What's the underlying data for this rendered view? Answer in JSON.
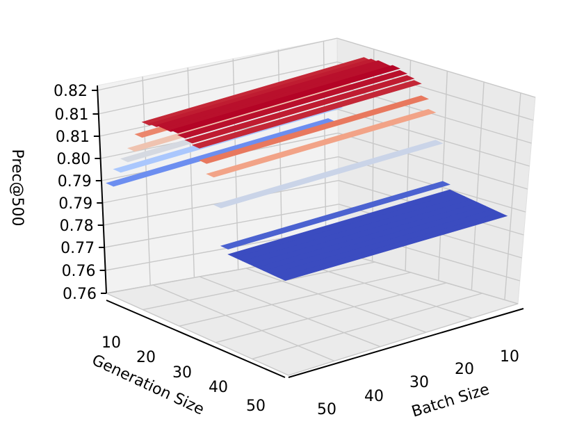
{
  "chart_data": {
    "type": "surface3d",
    "title": "",
    "xlabel": "Generation Size",
    "ylabel": "Batch Size",
    "zlabel": "Prec@500",
    "xticks": [
      "10",
      "20",
      "30",
      "40",
      "50"
    ],
    "yticks": [
      "10",
      "20",
      "30",
      "40",
      "50"
    ],
    "zticks": [
      "0.76",
      "0.76",
      "0.77",
      "0.78",
      "0.79",
      "0.79",
      "0.80",
      "0.81",
      "0.81",
      "0.82"
    ],
    "colormap": "coolwarm",
    "colormap_stops": [
      "#3b4cc0",
      "#6f92f3",
      "#aac7fd",
      "#dddcdc",
      "#f7b89c",
      "#e7745b",
      "#b40426"
    ],
    "grid": true,
    "generation_sizes": [
      2,
      4,
      6,
      8,
      10,
      12,
      14,
      16,
      18,
      20,
      22,
      24,
      26,
      28,
      30,
      32,
      34,
      36,
      38,
      40,
      42,
      44,
      46,
      48,
      50
    ],
    "surface_rows": [
      {
        "generation_size": 2,
        "prec500": 0.787
      },
      {
        "generation_size": 4,
        "prec500": 0.792
      },
      {
        "generation_size": 6,
        "prec500": 0.796
      },
      {
        "generation_size": 8,
        "prec500": 0.8
      },
      {
        "generation_size": 10,
        "prec500": 0.805
      },
      {
        "generation_size": 12,
        "prec500": 0.8095
      },
      {
        "generation_size": 14,
        "prec500": 0.81
      },
      {
        "generation_size": 16,
        "prec500": 0.8105
      },
      {
        "generation_size": 18,
        "prec500": 0.8105
      },
      {
        "generation_size": 20,
        "prec500": 0.811
      },
      {
        "generation_size": 22,
        "prec500": 0.8105
      },
      {
        "generation_size": 24,
        "prec500": 0.81
      },
      {
        "generation_size": 26,
        "prec500": 0.8095
      },
      {
        "generation_size": 28,
        "prec500": 0.806
      },
      {
        "generation_size": 30,
        "prec500": 0.803
      },
      {
        "generation_size": 32,
        "prec500": 0.795
      },
      {
        "generation_size": 34,
        "prec500": 0.784
      },
      {
        "generation_size": 36,
        "prec500": 0.7825
      },
      {
        "generation_size": 38,
        "prec500": 0.7825
      },
      {
        "generation_size": 40,
        "prec500": 0.7825
      },
      {
        "generation_size": 42,
        "prec500": 0.7825
      },
      {
        "generation_size": 44,
        "prec500": 0.7825
      },
      {
        "generation_size": 46,
        "prec500": 0.7825
      },
      {
        "generation_size": 48,
        "prec500": 0.7825
      },
      {
        "generation_size": 50,
        "prec500": 0.7825
      }
    ]
  }
}
